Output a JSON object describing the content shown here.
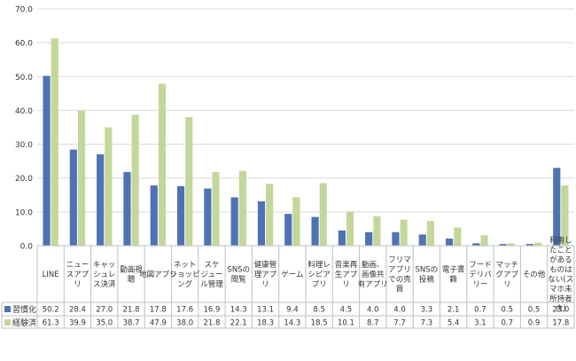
{
  "chart_data": {
    "type": "bar",
    "title": "",
    "xlabel": "",
    "ylabel": "",
    "ylim": [
      0,
      70
    ],
    "yticks": [
      "0.0",
      "10.0",
      "20.0",
      "30.0",
      "40.0",
      "50.0",
      "60.0",
      "70.0"
    ],
    "grid": true,
    "legend_placement": "left of data table",
    "categories": [
      [
        "LINE"
      ],
      [
        "ニュー",
        "スアプ",
        "リ"
      ],
      [
        "キャッ",
        "シュレ",
        "ス決済"
      ],
      [
        "動画視",
        "聴"
      ],
      [
        "地図アプリ"
      ],
      [
        "ネット",
        "ショッピ",
        "ング"
      ],
      [
        "スケ",
        "ジュー",
        "ル管理"
      ],
      [
        "SNSの",
        "閲覧"
      ],
      [
        "健康管",
        "理アプ",
        "リ"
      ],
      [
        "ゲーム"
      ],
      [
        "料理レ",
        "シピア",
        "プリ"
      ],
      [
        "音楽再",
        "生アプ",
        "リ"
      ],
      [
        "動画、",
        "画像共",
        "有アプリ"
      ],
      [
        "フリマ",
        "アプリ",
        "での売",
        "買"
      ],
      [
        "SNSの",
        "投稿"
      ],
      [
        "電子書",
        "籍"
      ],
      [
        "フード",
        "デリバ",
        "リー"
      ],
      [
        "マッチ",
        "グアプ",
        "リ"
      ],
      [
        "その他"
      ],
      [
        "利用し",
        "たこと",
        "がある",
        "ものは",
        "ない(ス",
        "マホ未",
        "所持者",
        "含)"
      ]
    ],
    "series": [
      {
        "name": "習慣化",
        "color": "#4f72b4",
        "values": [
          50.2,
          28.4,
          27.0,
          21.8,
          17.8,
          17.6,
          16.9,
          14.3,
          13.1,
          9.4,
          8.5,
          4.5,
          4.0,
          4.0,
          3.3,
          2.1,
          0.7,
          0.5,
          0.5,
          23.0
        ],
        "labels": [
          "50.2",
          "28.4",
          "27.0",
          "21.8",
          "17.8",
          "17.6",
          "16.9",
          "14.3",
          "13.1",
          "9.4",
          "8.5",
          "4.5",
          "4.0",
          "4.0",
          "3.3",
          "2.1",
          "0.7",
          "0.5",
          "0.5",
          "23.0"
        ]
      },
      {
        "name": "経験済",
        "color": "#c4d79b",
        "values": [
          61.3,
          39.9,
          35.0,
          38.7,
          47.9,
          38.0,
          21.8,
          22.1,
          18.3,
          14.3,
          18.5,
          10.1,
          8.7,
          7.7,
          7.3,
          5.4,
          3.1,
          0.7,
          0.9,
          17.8
        ],
        "labels": [
          "61.3",
          "39.9",
          "35.0",
          "38.7",
          "47.9",
          "38.0",
          "21.8",
          "22.1",
          "18.3",
          "14.3",
          "18.5",
          "10.1",
          "8.7",
          "7.7",
          "7.3",
          "5.4",
          "3.1",
          "0.7",
          "0.9",
          "17.8"
        ]
      }
    ]
  }
}
